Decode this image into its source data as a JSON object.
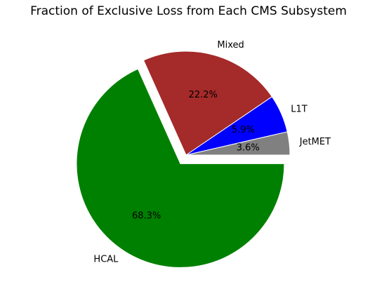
{
  "chart_data": {
    "type": "pie",
    "title": "Fraction of Exclusive Loss from Each CMS Subsystem",
    "start_angle_deg": 0,
    "direction": "counterclockwise",
    "slices": [
      {
        "label": "JetMET",
        "value": 3.6,
        "pct_label": "3.6%",
        "color": "#808080",
        "exploded": false
      },
      {
        "label": "L1T",
        "value": 5.9,
        "pct_label": "5.9%",
        "color": "#0000ff",
        "exploded": false
      },
      {
        "label": "Mixed",
        "value": 22.2,
        "pct_label": "22.2%",
        "color": "#a52a2a",
        "exploded": false
      },
      {
        "label": "HCAL",
        "value": 68.3,
        "pct_label": "68.3%",
        "color": "#008000",
        "exploded": true
      }
    ]
  }
}
